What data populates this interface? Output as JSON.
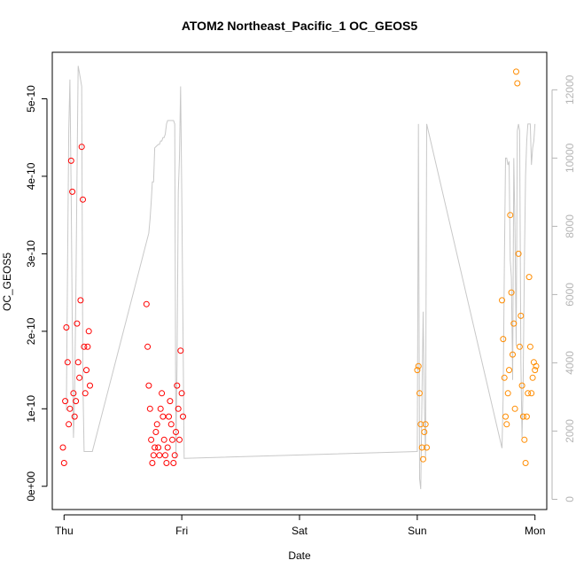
{
  "chart_data": {
    "type": "scatter",
    "title": "ATOM2 Northeast_Pacific_1 OC_GEOS5",
    "xlabel": "Date",
    "ylabel": "OC_GEOS5",
    "x_tick_labels": [
      "Thu",
      "Fri",
      "Sat",
      "Sun",
      "Mon"
    ],
    "xlim_days": [
      -0.1,
      4.1
    ],
    "ylim": [
      -3e-11,
      5.6e-10
    ],
    "y_ticks": [
      0,
      1e-10,
      2e-10,
      3e-10,
      4e-10,
      5e-10
    ],
    "y_tick_labels": [
      "0e+00",
      "1e-10",
      "2e-10",
      "3e-10",
      "4e-10",
      "5e-10"
    ],
    "y2lim": [
      -300,
      13100
    ],
    "y2_ticks": [
      0,
      2000,
      4000,
      6000,
      8000,
      10000,
      12000
    ],
    "y2_tick_labels": [
      "0",
      "2000",
      "4000",
      "6000",
      "8000",
      "10000",
      "12000"
    ],
    "grid": false,
    "colors": {
      "red": "#ff0000",
      "orange": "#ff8c00",
      "altitude": "#c8c8c8",
      "axis": "#000000",
      "right_axis": "#b5b5b5"
    },
    "series": [
      {
        "color": "red",
        "x": [
          -0.01,
          0.0,
          0.01,
          0.02,
          0.03,
          0.04,
          0.05,
          0.06,
          0.07,
          0.08,
          0.09,
          0.1,
          0.11,
          0.12,
          0.13,
          0.14,
          0.15,
          0.16,
          0.17,
          0.18,
          0.19,
          0.2,
          0.21,
          0.22,
          0.7,
          0.71,
          0.72,
          0.73,
          0.74,
          0.75,
          0.76,
          0.77,
          0.78,
          0.79,
          0.8,
          0.81,
          0.82,
          0.83,
          0.84,
          0.85,
          0.86,
          0.87,
          0.88,
          0.89,
          0.9,
          0.91,
          0.92,
          0.93,
          0.94,
          0.95,
          0.96,
          0.97,
          0.98,
          0.99,
          1.0,
          1.01
        ],
        "y": [
          5e-11,
          3e-11,
          1.1e-10,
          2.05e-10,
          1.6e-10,
          8e-11,
          1e-10,
          4.2e-10,
          3.8e-10,
          1.2e-10,
          9e-11,
          1.1e-10,
          2.1e-10,
          1.6e-10,
          1.4e-10,
          2.4e-10,
          4.38e-10,
          3.7e-10,
          1.8e-10,
          1.2e-10,
          1.5e-10,
          1.8e-10,
          2e-10,
          1.3e-10,
          2.35e-10,
          1.8e-10,
          1.3e-10,
          1e-10,
          6e-11,
          3e-11,
          4e-11,
          5e-11,
          7e-11,
          8e-11,
          5e-11,
          4e-11,
          1e-10,
          1.2e-10,
          9e-11,
          6e-11,
          4e-11,
          3e-11,
          5e-11,
          9e-11,
          1.1e-10,
          8e-11,
          6e-11,
          3e-11,
          4e-11,
          7e-11,
          1.3e-10,
          1e-10,
          6e-11,
          1.75e-10,
          1.2e-10,
          9e-11
        ]
      },
      {
        "color": "orange",
        "x": [
          3.0,
          3.01,
          3.02,
          3.03,
          3.04,
          3.05,
          3.06,
          3.07,
          3.08,
          3.72,
          3.73,
          3.74,
          3.75,
          3.76,
          3.77,
          3.78,
          3.79,
          3.8,
          3.81,
          3.82,
          3.83,
          3.84,
          3.85,
          3.86,
          3.87,
          3.88,
          3.89,
          3.9,
          3.91,
          3.92,
          3.93,
          3.94,
          3.95,
          3.96,
          3.97,
          3.98,
          3.99,
          4.0,
          4.01
        ],
        "y": [
          1.5e-10,
          1.55e-10,
          1.2e-10,
          8e-11,
          5e-11,
          3.5e-11,
          7e-11,
          8e-11,
          5e-11,
          2.4e-10,
          1.9e-10,
          1.4e-10,
          9e-11,
          8e-11,
          1.2e-10,
          1.5e-10,
          3.5e-10,
          2.5e-10,
          1.7e-10,
          2.1e-10,
          1e-10,
          5.35e-10,
          5.2e-10,
          3e-10,
          1.8e-10,
          2.2e-10,
          1.3e-10,
          9e-11,
          6e-11,
          3e-11,
          9e-11,
          1.2e-10,
          2.7e-10,
          1.8e-10,
          1.2e-10,
          1.4e-10,
          1.6e-10,
          1.5e-10,
          1.55e-10
        ]
      },
      {
        "color": "altitude",
        "axis": "right",
        "x": [
          0.02,
          0.03,
          0.04,
          0.05,
          0.06,
          0.07,
          0.08,
          0.09,
          0.1,
          0.11,
          0.12,
          0.13,
          0.14,
          0.15,
          0.16,
          0.17,
          0.18,
          0.19,
          0.2,
          0.21,
          0.22,
          0.23,
          0.24,
          0.72,
          0.73,
          0.74,
          0.75,
          0.76,
          0.77,
          0.8,
          0.81,
          0.82,
          0.83,
          0.84,
          0.85,
          0.86,
          0.87,
          0.88,
          0.89,
          0.9,
          0.91,
          0.92,
          0.93,
          0.94,
          0.95,
          0.96,
          0.97,
          0.98,
          0.99,
          1.0,
          1.01,
          1.02,
          3.0,
          3.01,
          3.02,
          3.03,
          3.04,
          3.05,
          3.06,
          3.07,
          3.08,
          3.72,
          3.73,
          3.74,
          3.75,
          3.76,
          3.77,
          3.78,
          3.79,
          3.8,
          3.81,
          3.82,
          3.83,
          3.84,
          3.85,
          3.86,
          3.87,
          3.88,
          3.89,
          3.9,
          3.91,
          3.92,
          3.93,
          3.94,
          3.95,
          3.96,
          3.97,
          3.98,
          3.99,
          4.0
        ],
        "y": [
          2600,
          7000,
          10800,
          12300,
          9000,
          5000,
          1800,
          3000,
          6000,
          9500,
          12700,
          12500,
          12300,
          12100,
          3500,
          1400,
          1400,
          1400,
          1400,
          1400,
          1400,
          1400,
          1400,
          7800,
          8200,
          8700,
          9300,
          9300,
          10300,
          10400,
          10400,
          10500,
          10500,
          10600,
          10600,
          10700,
          11000,
          11100,
          11100,
          11100,
          11100,
          11100,
          11100,
          11000,
          1200,
          4000,
          9000,
          10000,
          12100,
          9000,
          5000,
          1200,
          1400,
          11000,
          600,
          300,
          3000,
          5500,
          3000,
          1200,
          11000,
          1500,
          3000,
          7000,
          10000,
          10000,
          9800,
          9900,
          7000,
          6500,
          3500,
          10000,
          8000,
          4500,
          10800,
          11000,
          10800,
          4000,
          1800,
          3500,
          7000,
          9500,
          10500,
          11000,
          11000,
          11000,
          9800,
          10300,
          10500,
          11000
        ]
      }
    ]
  }
}
